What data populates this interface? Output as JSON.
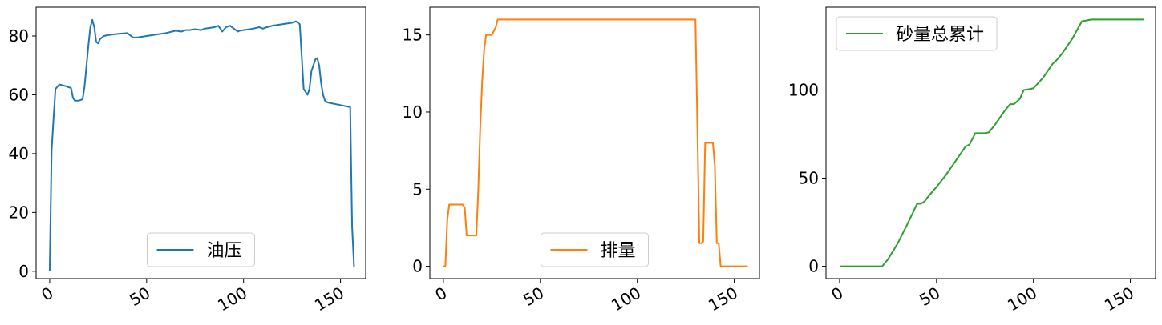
{
  "chart_data": [
    {
      "type": "line",
      "xlim": [
        -7,
        163
      ],
      "ylim": [
        -2.5,
        89.8
      ],
      "x_ticks": [
        0,
        50,
        100,
        150
      ],
      "y_ticks": [
        0,
        20,
        40,
        60,
        80
      ],
      "grid": false,
      "legend_position": "lower center",
      "series": [
        {
          "name": "油压",
          "color": "#1f77b4",
          "x": [
            0,
            1,
            2,
            3,
            5,
            8,
            11,
            12,
            13,
            15,
            17,
            18,
            19,
            20,
            21,
            22,
            23,
            24,
            25,
            26,
            28,
            30,
            35,
            40,
            43,
            45,
            47,
            50,
            55,
            60,
            65,
            68,
            70,
            72,
            75,
            78,
            80,
            82,
            85,
            87,
            89,
            91,
            93,
            95,
            97,
            98,
            100,
            105,
            108,
            110,
            112,
            115,
            120,
            125,
            127,
            129,
            130,
            131,
            132,
            133,
            134,
            135,
            136,
            137,
            138,
            139,
            140,
            141,
            142,
            143,
            144,
            150,
            155,
            156,
            157
          ],
          "y": [
            0,
            41,
            52,
            62,
            63.5,
            63,
            62.3,
            59,
            58,
            58,
            58.5,
            63,
            70,
            77,
            83,
            85.5,
            83,
            78,
            77.5,
            79,
            80,
            80.3,
            80.7,
            81,
            79.5,
            79.5,
            79.7,
            80,
            80.5,
            81,
            81.8,
            81.5,
            82,
            82,
            82.3,
            82,
            82.5,
            82.7,
            83,
            83.5,
            81.5,
            83,
            83.5,
            82.5,
            81.5,
            81.8,
            82,
            82.5,
            83,
            82.5,
            83,
            83.5,
            84,
            84.5,
            85,
            84,
            73,
            62,
            61,
            60,
            62,
            68,
            70,
            72,
            72.5,
            70,
            64,
            60,
            58,
            57.5,
            57.3,
            56.5,
            55.8,
            15,
            1.5
          ]
        }
      ]
    },
    {
      "type": "line",
      "xlim": [
        -7,
        163
      ],
      "ylim": [
        -0.8,
        16.8
      ],
      "x_ticks": [
        0,
        50,
        100,
        150
      ],
      "y_ticks": [
        0,
        5,
        10,
        15
      ],
      "grid": false,
      "legend_position": "lower center",
      "series": [
        {
          "name": "排量",
          "color": "#ff7f0e",
          "x": [
            0,
            1,
            2,
            3,
            10,
            11,
            12,
            17,
            18,
            19,
            20,
            21,
            22,
            24,
            25,
            27,
            28,
            130,
            131,
            132,
            133,
            134,
            135,
            139,
            140,
            141,
            142,
            143,
            157
          ],
          "y": [
            0,
            0,
            3,
            4,
            4,
            3.8,
            2,
            2,
            5,
            9,
            12,
            14,
            15,
            15,
            15,
            15.5,
            16,
            16,
            9,
            1.5,
            1.5,
            1.6,
            8,
            8,
            6.5,
            1.5,
            1.5,
            0,
            0
          ]
        }
      ]
    },
    {
      "type": "line",
      "xlim": [
        -7,
        163
      ],
      "ylim": [
        -7,
        147
      ],
      "x_ticks": [
        0,
        50,
        100,
        150
      ],
      "y_ticks": [
        0,
        50,
        100
      ],
      "grid": false,
      "legend_position": "upper left",
      "series": [
        {
          "name": "砂量总累计",
          "color": "#2ca02c",
          "x": [
            0,
            10,
            22,
            25,
            30,
            35,
            40,
            42,
            44,
            46,
            50,
            55,
            60,
            65,
            67,
            70,
            72,
            75,
            77,
            80,
            85,
            88,
            90,
            93,
            95,
            98,
            100,
            105,
            110,
            112,
            115,
            120,
            125,
            130,
            140,
            150,
            157
          ],
          "y": [
            0,
            0,
            0,
            4,
            13,
            24,
            35.5,
            35.5,
            37,
            40,
            45,
            52,
            60,
            68,
            69,
            75.5,
            75.5,
            75.5,
            76,
            80,
            88,
            92,
            92,
            95,
            100,
            100.5,
            101,
            107,
            115,
            117,
            121,
            129,
            139,
            140,
            140,
            140,
            140
          ]
        }
      ]
    }
  ]
}
